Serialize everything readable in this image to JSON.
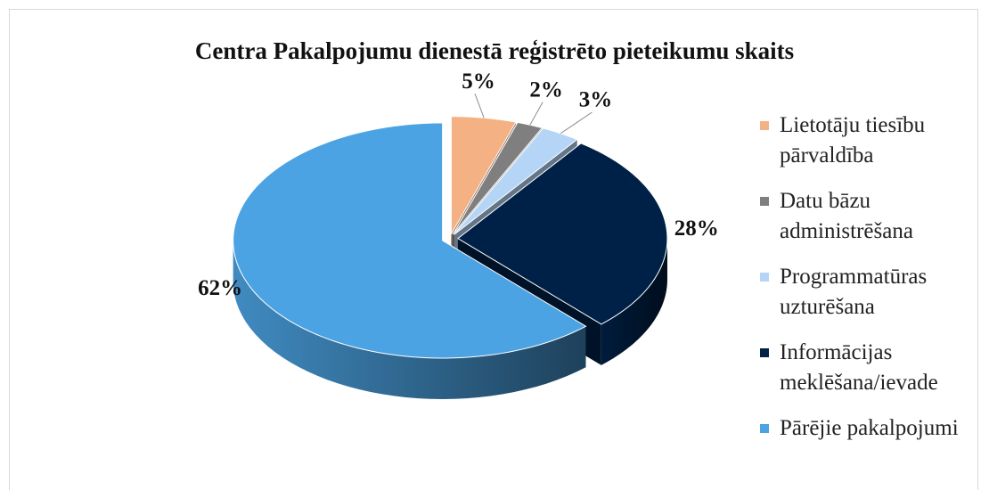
{
  "chart_data": {
    "type": "pie",
    "title": "Centra Pakalpojumu dienestā reģistrēto pieteikumu skaits",
    "categories": [
      "Lietotāju tiesību pārvaldība",
      "Datu bāzu administrēšana",
      "Programmatūras uzturēšana",
      "Informācijas meklēšana/ievade",
      "Pārējie pakalpojumi"
    ],
    "values": [
      5,
      2,
      3,
      28,
      62
    ],
    "value_labels": [
      "5%",
      "2%",
      "3%",
      "28%",
      "62%"
    ],
    "colors": [
      "#f4b183",
      "#7f7f7f",
      "#b4d5f5",
      "#002147",
      "#4ba3e3"
    ],
    "legend": "right"
  }
}
